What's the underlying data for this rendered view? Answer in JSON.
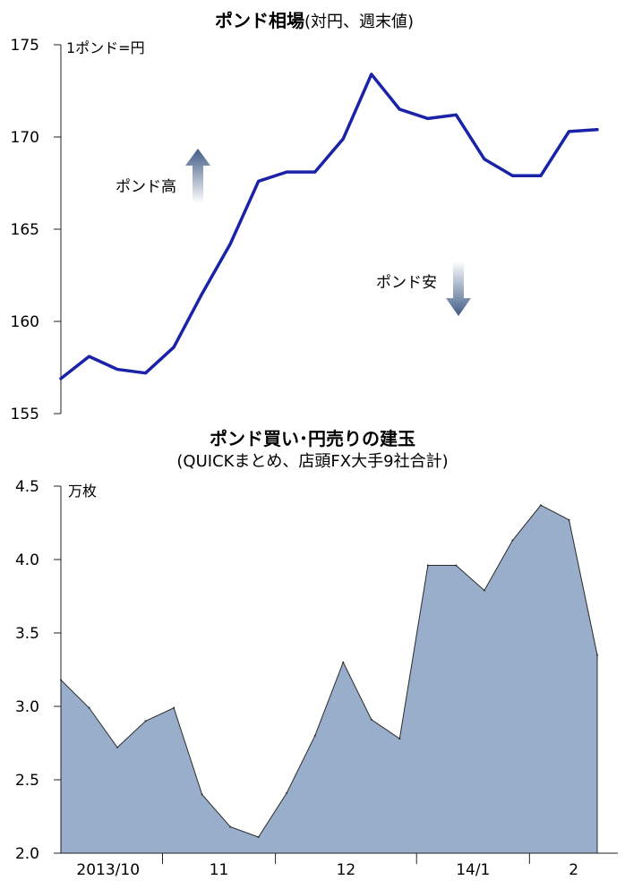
{
  "chart_data": [
    {
      "type": "line",
      "title": "ポンド相場",
      "subtitle": "(対円、週末値)",
      "unit_label": "1ポンド=円",
      "ylim": [
        155,
        175
      ],
      "y_ticks": [
        "155",
        "160",
        "165",
        "170",
        "175"
      ],
      "series": [
        {
          "values": [
            156.9,
            158.1,
            157.4,
            157.2,
            158.6,
            161.5,
            164.2,
            167.6,
            168.1,
            168.1,
            169.9,
            173.4,
            171.5,
            171.0,
            171.2,
            168.8,
            167.9,
            167.9,
            170.3,
            170.4
          ],
          "color": "#1a23a8"
        }
      ],
      "annotations": [
        {
          "label": "ポンド高",
          "arrow": "up"
        },
        {
          "label": "ポンド安",
          "arrow": "down"
        }
      ]
    },
    {
      "type": "area",
      "title": "ポンド買い･円売りの建玉",
      "subtitle": "(QUICKまとめ、店頭FX大手9社合計)",
      "unit_label": "万枚",
      "ylim": [
        2.0,
        4.5
      ],
      "y_ticks": [
        "2.0",
        "2.5",
        "3.0",
        "3.5",
        "4.0",
        "4.5"
      ],
      "x_tick_labels": [
        "2013/10",
        "11",
        "12",
        "14/1",
        "2"
      ],
      "series": [
        {
          "values": [
            3.18,
            2.99,
            2.72,
            2.9,
            2.99,
            2.4,
            2.18,
            2.11,
            2.41,
            2.8,
            3.3,
            2.91,
            2.78,
            3.96,
            3.96,
            3.79,
            4.13,
            4.37,
            4.27,
            3.35
          ],
          "color": "#98aecb"
        }
      ]
    }
  ]
}
